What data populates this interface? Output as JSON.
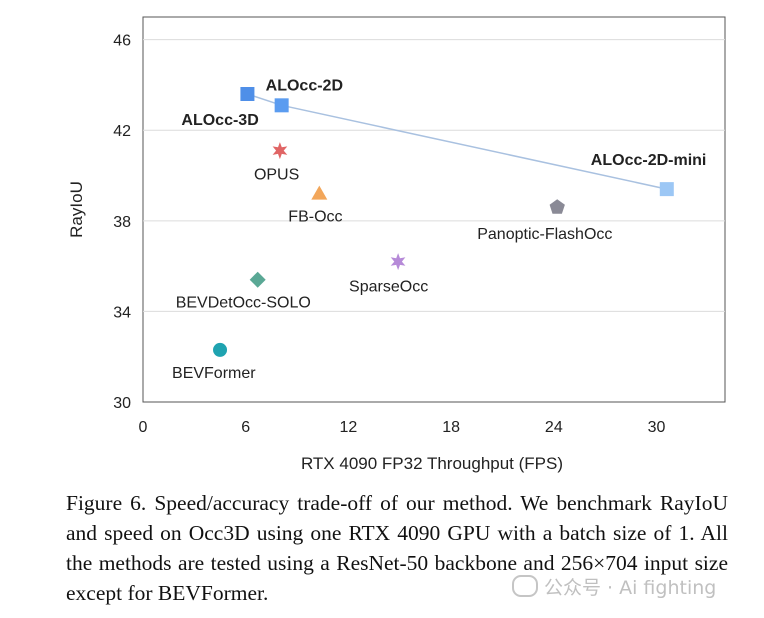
{
  "chart_data": {
    "type": "scatter",
    "xlabel": "RTX 4090 FP32 Throughput (FPS)",
    "ylabel": "RayIoU",
    "xlim": [
      0,
      34
    ],
    "ylim": [
      30,
      47
    ],
    "xticks": [
      0,
      6,
      12,
      18,
      24,
      30
    ],
    "yticks": [
      30,
      34,
      38,
      42,
      46
    ],
    "grid": "horizontal",
    "points": [
      {
        "label": "ALOcc-3D",
        "x": 6.1,
        "y": 43.6,
        "marker": "square",
        "color": "#4f8fe8",
        "bold": true
      },
      {
        "label": "ALOcc-2D",
        "x": 8.1,
        "y": 43.1,
        "marker": "square",
        "color": "#5b9cf0",
        "bold": true
      },
      {
        "label": "ALOcc-2D-mini",
        "x": 30.6,
        "y": 39.4,
        "marker": "square",
        "color": "#9cc7f5",
        "bold": true
      },
      {
        "label": "OPUS",
        "x": 8.0,
        "y": 41.1,
        "marker": "star",
        "color": "#e06565",
        "bold": false
      },
      {
        "label": "FB-Occ",
        "x": 10.3,
        "y": 39.2,
        "marker": "triangle",
        "color": "#f2a65a",
        "bold": false
      },
      {
        "label": "Panoptic-FlashOcc",
        "x": 24.2,
        "y": 38.6,
        "marker": "pentagon",
        "color": "#8a8a96",
        "bold": false
      },
      {
        "label": "SparseOcc",
        "x": 14.9,
        "y": 36.2,
        "marker": "star",
        "color": "#b68ad8",
        "bold": false
      },
      {
        "label": "BEVDetOcc-SOLO",
        "x": 6.7,
        "y": 35.4,
        "marker": "diamond",
        "color": "#5aa895",
        "bold": false
      },
      {
        "label": "BEVFormer",
        "x": 4.5,
        "y": 32.3,
        "marker": "circle",
        "color": "#1fa3b0",
        "bold": false
      }
    ],
    "trend_line": [
      "ALOcc-3D",
      "ALOcc-2D",
      "ALOcc-2D-mini"
    ],
    "trend_color": "#a9c1e0"
  },
  "caption": "Figure 6. Speed/accuracy trade-off of our method. We benchmark RayIoU and speed on Occ3D using one RTX 4090 GPU with a batch size of 1.  All the methods are tested using a ResNet-50 backbone and 256×704 input size except for BEVFormer.",
  "watermark": "公众号 · Ai fighting"
}
